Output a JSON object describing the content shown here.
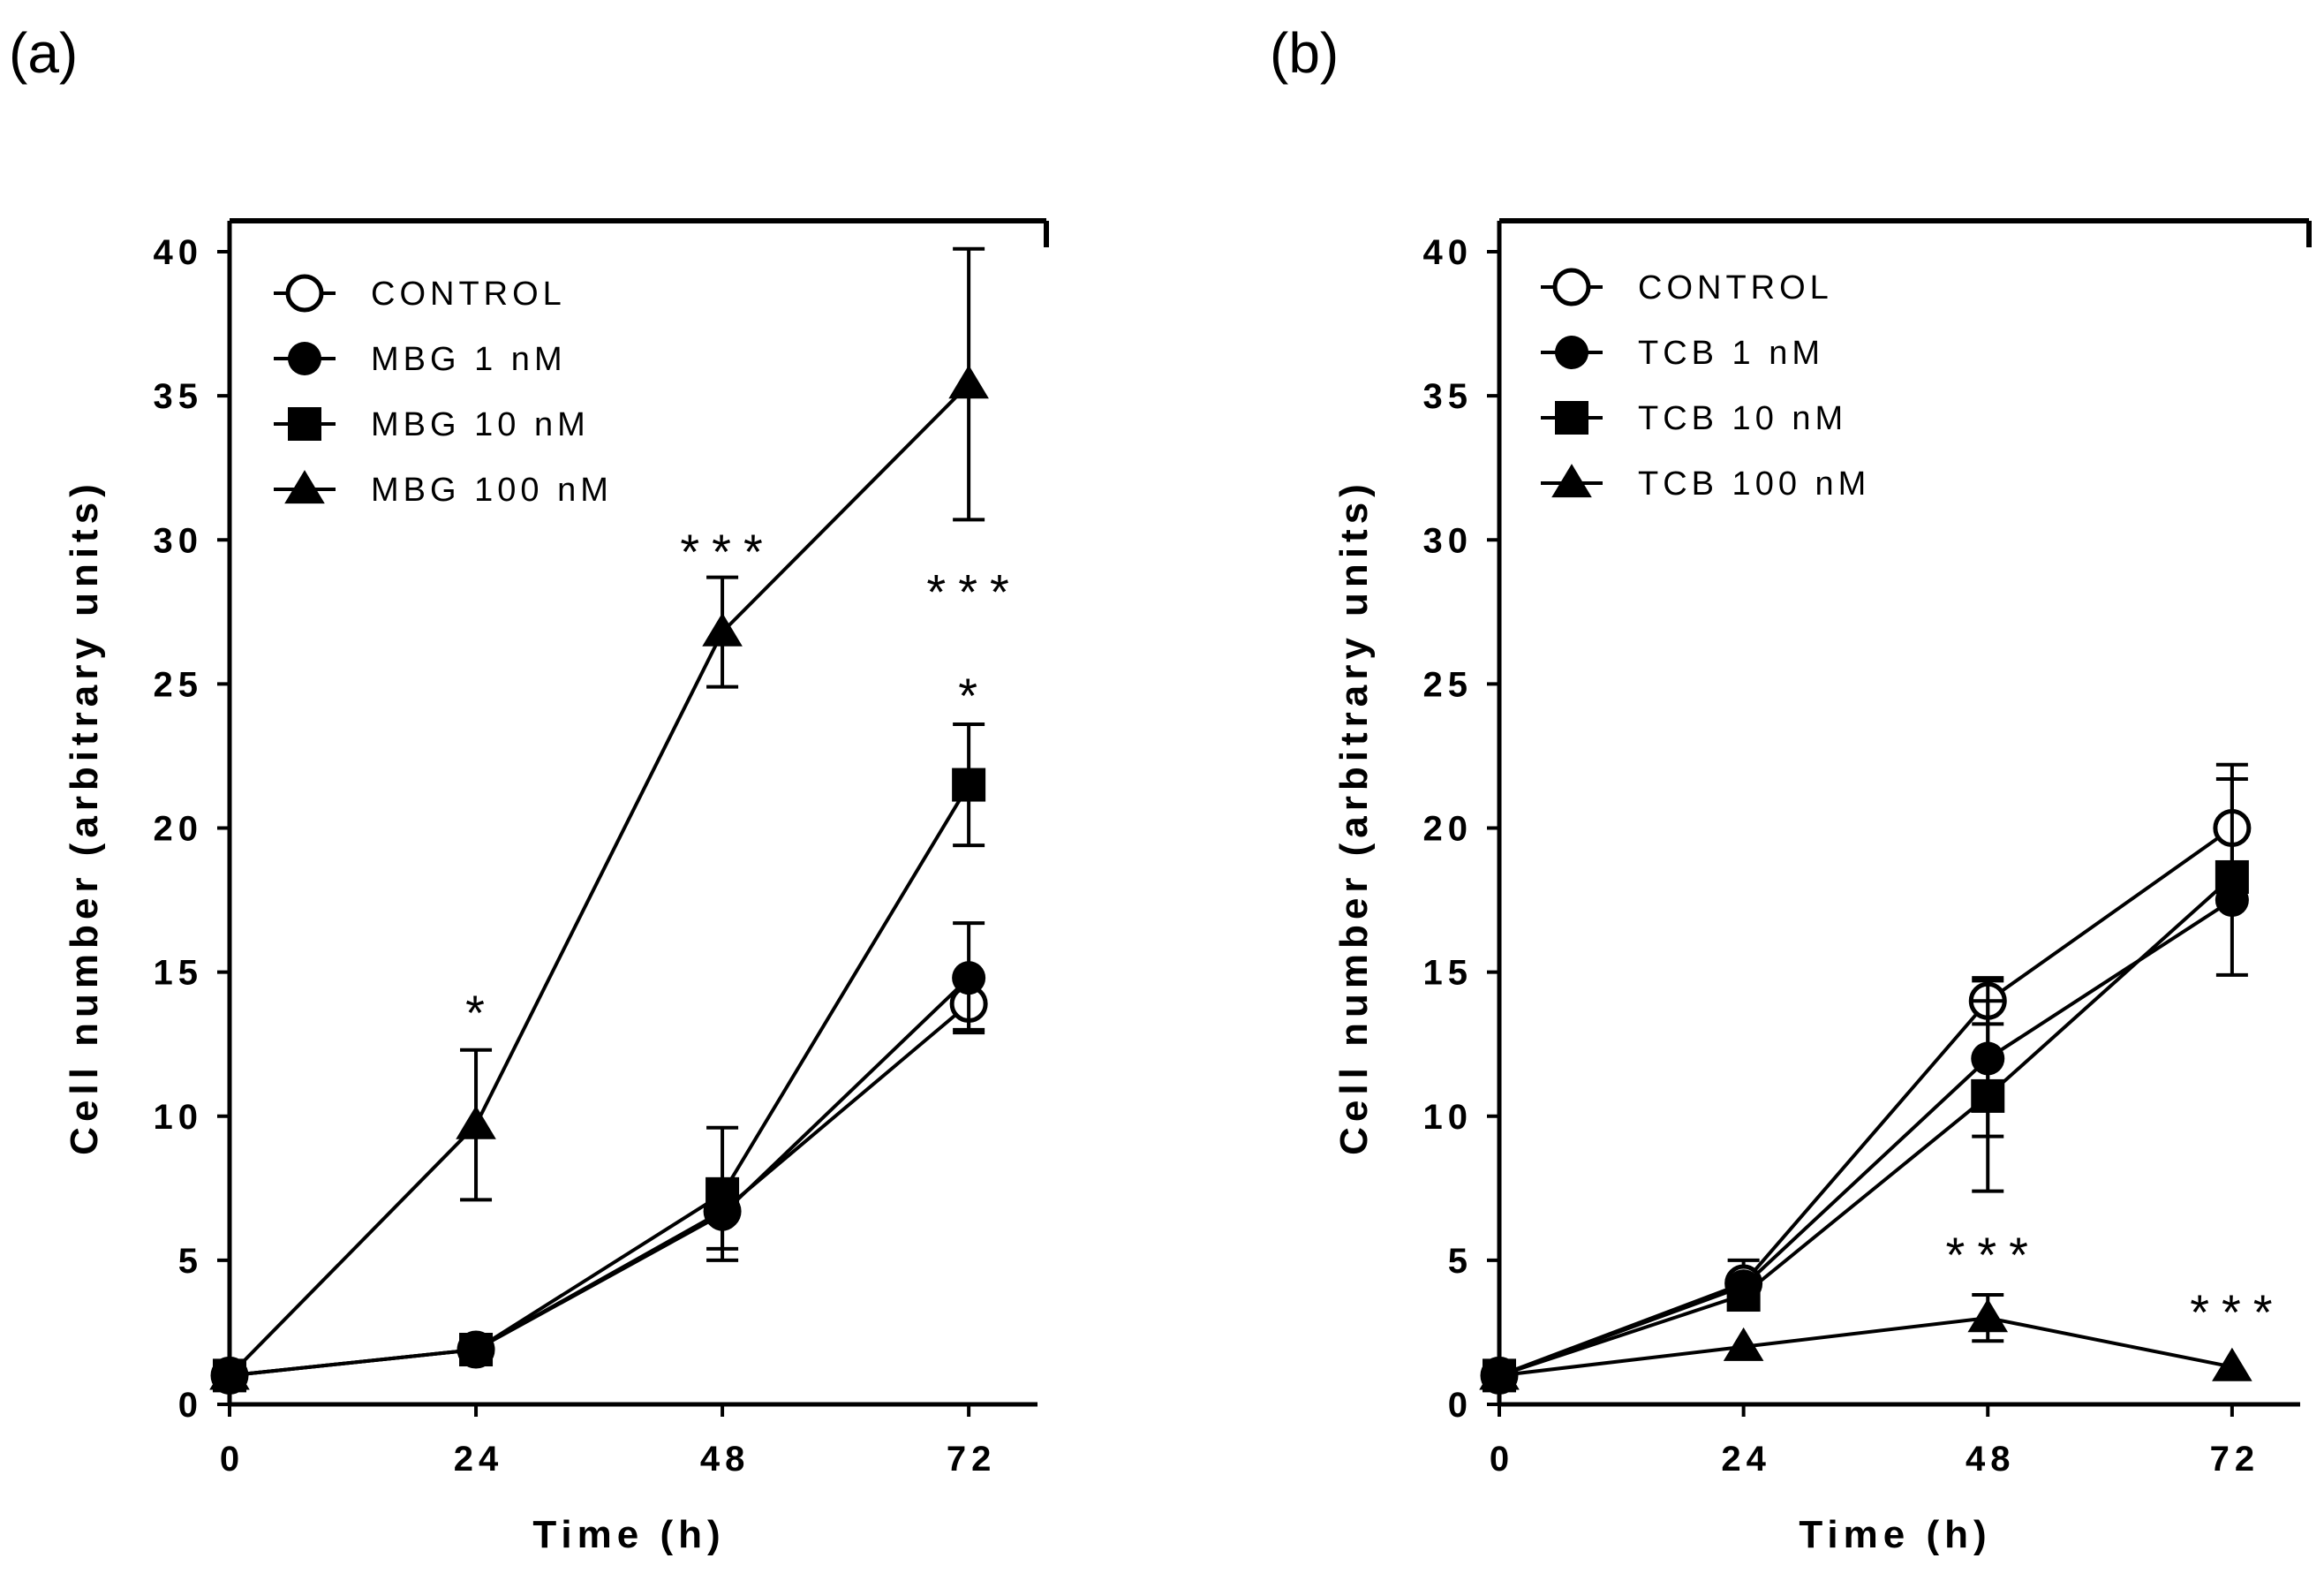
{
  "chart_data": [
    {
      "type": "line",
      "panel_label": "(a)",
      "xlabel": "Time (h)",
      "ylabel": "Cell number (arbitrary units)",
      "x": [
        0,
        24,
        48,
        72
      ],
      "x_tick_labels": [
        "0",
        "24",
        "48",
        "72"
      ],
      "ylim": [
        0,
        40
      ],
      "y_ticks": [
        0,
        5,
        10,
        15,
        20,
        25,
        30,
        35,
        40
      ],
      "y_tick_labels": [
        "0",
        "5",
        "10",
        "15",
        "20",
        "25",
        "30",
        "35",
        "40"
      ],
      "legend_position": "top-left",
      "series": [
        {
          "name": "CONTROL",
          "marker": "open-circle",
          "values": [
            1,
            1.9,
            6.7,
            13.9
          ],
          "errors": [
            0,
            0,
            0,
            0.9
          ]
        },
        {
          "name": "MBG 1 nM",
          "marker": "filled-circle",
          "values": [
            1,
            1.9,
            6.6,
            14.8
          ],
          "errors": [
            0,
            0,
            1.2,
            1.9
          ]
        },
        {
          "name": "MBG 10 nM",
          "marker": "filled-square",
          "values": [
            1,
            1.9,
            7.3,
            21.5
          ],
          "errors": [
            0,
            0,
            2.3,
            2.1
          ]
        },
        {
          "name": "MBG 100 nM",
          "marker": "filled-triangle",
          "values": [
            1,
            9.7,
            26.8,
            35.4
          ],
          "errors": [
            0,
            2.6,
            1.9,
            4.7
          ]
        }
      ],
      "annotations": [
        {
          "text": "*",
          "x": 24,
          "y": 13.0
        },
        {
          "text": "***",
          "x": 48,
          "y": 29.0
        },
        {
          "text": "***",
          "x": 72,
          "y": 27.6
        },
        {
          "text": "*",
          "x": 72,
          "y": 24.0
        }
      ]
    },
    {
      "type": "line",
      "panel_label": "(b)",
      "xlabel": "Time (h)",
      "ylabel": "Cell number (arbitrary units)",
      "x": [
        0,
        24,
        48,
        72
      ],
      "x_tick_labels": [
        "0",
        "24",
        "48",
        "72"
      ],
      "ylim": [
        0,
        40
      ],
      "y_ticks": [
        0,
        5,
        10,
        15,
        20,
        25,
        30,
        35,
        40
      ],
      "y_tick_labels": [
        "0",
        "5",
        "10",
        "15",
        "20",
        "25",
        "30",
        "35",
        "40"
      ],
      "legend_position": "top-left",
      "series": [
        {
          "name": "CONTROL",
          "marker": "open-circle",
          "values": [
            1,
            4.2,
            14,
            20
          ],
          "errors": [
            0,
            0.8,
            0.8,
            2.2
          ]
        },
        {
          "name": "TCB 1 nM",
          "marker": "filled-circle",
          "values": [
            1,
            4.1,
            12,
            17.5
          ],
          "errors": [
            0,
            0,
            2.7,
            0
          ]
        },
        {
          "name": "TCB 10 nM",
          "marker": "filled-square",
          "values": [
            1,
            3.8,
            10.7,
            18.3
          ],
          "errors": [
            0,
            0,
            3.3,
            3.4
          ]
        },
        {
          "name": "TCB 100 nM",
          "marker": "filled-triangle",
          "values": [
            1,
            2,
            3,
            1.3
          ],
          "errors": [
            0,
            0,
            0.8,
            0
          ]
        }
      ],
      "annotations": [
        {
          "text": "***",
          "x": 48,
          "y": 4.6
        },
        {
          "text": "***",
          "x": 72,
          "y": 2.6
        }
      ]
    }
  ]
}
